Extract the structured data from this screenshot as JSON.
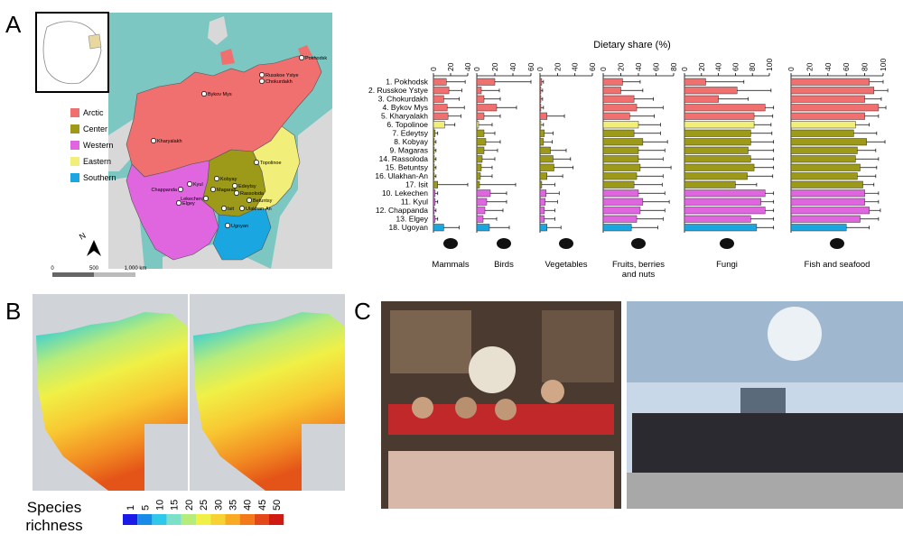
{
  "panel_labels": {
    "a": "A",
    "b": "B",
    "c": "C"
  },
  "map": {
    "regions": [
      {
        "name": "Arctic",
        "color": "#f07070"
      },
      {
        "name": "Center",
        "color": "#9c9a18"
      },
      {
        "name": "Western",
        "color": "#e066e0"
      },
      {
        "name": "Eastern",
        "color": "#f2ee7a"
      },
      {
        "name": "Southern",
        "color": "#1aa6e0"
      }
    ],
    "sites": [
      "Pokhodsk",
      "Russkoe Ystye",
      "Chokurdakh",
      "Bykov Mys",
      "Kharyalakh",
      "Topolinoe",
      "Kobyay",
      "Edeytsy",
      "Magaras",
      "Rassoloda",
      "Betuntsy",
      "Ulakhan-An",
      "Isit",
      "Kyul",
      "Chappanda",
      "Lekechen",
      "Elgey",
      "Ugoyan"
    ],
    "north_label": "N",
    "scale_labels": [
      "0",
      "500",
      "1,000 km"
    ]
  },
  "species_richness": {
    "title_line1": "Species",
    "title_line2": "richness",
    "ticks": [
      "1",
      "5",
      "10",
      "15",
      "20",
      "25",
      "30",
      "35",
      "40",
      "45",
      "50"
    ],
    "colors": [
      "#1a1ae6",
      "#1a8ae8",
      "#30c8e8",
      "#7ae0c8",
      "#b8ec7a",
      "#f0f046",
      "#f8d232",
      "#f8aa22",
      "#f27a1a",
      "#e44818",
      "#d01a14"
    ]
  },
  "chart_data": {
    "type": "bar",
    "orientation": "horizontal",
    "title": "Dietary share (%)",
    "categories": [
      "1. Pokhodsk",
      "2. Russkoe Ystye",
      "3. Chokurdakh",
      "4. Bykov Mys",
      "5. Kharyalakh",
      "6. Topolinoe",
      "7. Edeytsy",
      "8. Kobyay",
      "9. Magaras",
      "14. Rassoloda",
      "15. Betuntsy",
      "16. Ulakhan-An",
      "17. Isit",
      "10. Lekechen",
      "11. Kyul",
      "12. Chappanda",
      "13. Elgey",
      "18. Ugoyan"
    ],
    "category_region": [
      "Arctic",
      "Arctic",
      "Arctic",
      "Arctic",
      "Arctic",
      "Eastern",
      "Center",
      "Center",
      "Center",
      "Center",
      "Center",
      "Center",
      "Center",
      "Western",
      "Western",
      "Western",
      "Western",
      "Southern"
    ],
    "series": [
      {
        "name": "Mammals",
        "ticks": [
          "0",
          "20",
          "40"
        ],
        "xlim": [
          0,
          40
        ],
        "values": [
          15,
          18,
          12,
          16,
          17,
          13,
          2,
          1,
          1,
          1,
          1,
          1,
          5,
          2,
          2,
          1,
          2,
          12
        ],
        "errors": [
          22,
          15,
          18,
          20,
          15,
          12,
          3,
          2,
          2,
          2,
          2,
          2,
          35,
          3,
          3,
          2,
          3,
          18
        ]
      },
      {
        "name": "Birds",
        "ticks": [
          "0",
          "20",
          "40",
          "60"
        ],
        "xlim": [
          0,
          60
        ],
        "values": [
          20,
          5,
          8,
          22,
          8,
          2,
          8,
          10,
          8,
          6,
          5,
          4,
          3,
          15,
          11,
          9,
          7,
          14
        ],
        "errors": [
          40,
          20,
          18,
          22,
          18,
          15,
          12,
          16,
          15,
          14,
          12,
          13,
          40,
          18,
          22,
          20,
          15,
          22
        ]
      },
      {
        "name": "Vegetables",
        "ticks": [
          "0",
          "20",
          "40",
          "60"
        ],
        "xlim": [
          0,
          60
        ],
        "values": [
          2,
          1,
          1,
          1,
          8,
          1,
          5,
          4,
          12,
          15,
          16,
          8,
          2,
          7,
          6,
          5,
          5,
          8
        ],
        "errors": [
          2,
          2,
          2,
          3,
          20,
          3,
          10,
          10,
          18,
          20,
          22,
          18,
          15,
          15,
          14,
          12,
          12,
          16
        ]
      },
      {
        "name": "Fruits, berries and nuts",
        "ticks": [
          "0",
          "20",
          "40",
          "60",
          "80"
        ],
        "xlim": [
          0,
          80
        ],
        "values": [
          22,
          20,
          35,
          38,
          30,
          40,
          35,
          45,
          40,
          40,
          42,
          38,
          35,
          40,
          45,
          42,
          38,
          32
        ],
        "errors": [
          20,
          25,
          22,
          30,
          28,
          25,
          30,
          28,
          30,
          28,
          35,
          30,
          32,
          30,
          30,
          28,
          30,
          30
        ]
      },
      {
        "name": "Fungi",
        "ticks": [
          "0",
          "20",
          "40",
          "60",
          "80",
          "100"
        ],
        "xlim": [
          0,
          100
        ],
        "values": [
          25,
          62,
          40,
          95,
          82,
          82,
          78,
          78,
          75,
          78,
          82,
          74,
          60,
          95,
          90,
          95,
          78,
          85
        ],
        "errors": [
          45,
          40,
          35,
          10,
          22,
          20,
          25,
          28,
          30,
          30,
          25,
          30,
          25,
          15,
          20,
          10,
          30,
          25
        ]
      },
      {
        "name": "Fish and seafood",
        "ticks": [
          "0",
          "20",
          "40",
          "60",
          "80",
          "100"
        ],
        "xlim": [
          0,
          100
        ],
        "values": [
          85,
          90,
          80,
          95,
          80,
          70,
          68,
          82,
          72,
          70,
          75,
          72,
          78,
          80,
          80,
          85,
          75,
          60
        ],
        "errors": [
          15,
          15,
          18,
          8,
          15,
          15,
          25,
          20,
          20,
          25,
          18,
          20,
          12,
          15,
          15,
          12,
          20,
          25
        ]
      }
    ],
    "legend_colors": {
      "Arctic": "#f07070",
      "Center": "#9c9a18",
      "Western": "#e066e0",
      "Eastern": "#f2ee7a",
      "Southern": "#1aa6e0"
    }
  }
}
